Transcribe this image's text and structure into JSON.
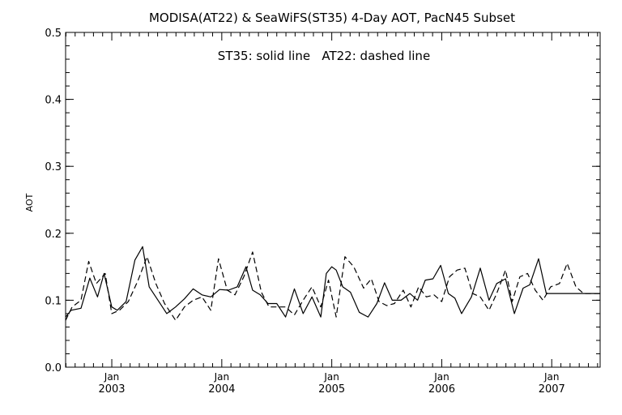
{
  "chart_data": {
    "type": "line",
    "title": "MODISA(AT22) & SeaWiFS(ST35) 4-Day AOT, PacN45 Subset",
    "annotation": "ST35: solid line   AT22: dashed line",
    "ylabel": "AOT",
    "xlabel": "",
    "xlim": [
      2002.58,
      2007.44
    ],
    "ylim": [
      0.0,
      0.5
    ],
    "yticks": [
      "0.0",
      "0.1",
      "0.2",
      "0.3",
      "0.4",
      "0.5"
    ],
    "xticks": [
      {
        "month": "Jan",
        "year": "2003",
        "x": 2003.0
      },
      {
        "month": "Jan",
        "year": "2004",
        "x": 2004.0
      },
      {
        "month": "Jan",
        "year": "2005",
        "x": 2005.0
      },
      {
        "month": "Jan",
        "year": "2006",
        "x": 2006.0
      },
      {
        "month": "Jan",
        "year": "2007",
        "x": 2007.0
      }
    ],
    "grid": false,
    "legend": "none",
    "series": [
      {
        "name": "ST35",
        "style": "solid",
        "color": "#000000",
        "x": [
          2002.58,
          2002.63,
          2002.72,
          2002.8,
          2002.87,
          2002.93,
          2003.0,
          2003.05,
          2003.13,
          2003.21,
          2003.28,
          2003.34,
          2003.42,
          2003.5,
          2003.58,
          2003.66,
          2003.74,
          2003.82,
          2003.9,
          2003.98,
          2004.06,
          2004.14,
          2004.22,
          2004.28,
          2004.35,
          2004.42,
          2004.5,
          2004.58,
          2004.66,
          2004.74,
          2004.82,
          2004.9,
          2004.95,
          2005.0,
          2005.04,
          2005.1,
          2005.17,
          2005.25,
          2005.33,
          2005.41,
          2005.48,
          2005.55,
          2005.63,
          2005.71,
          2005.78,
          2005.85,
          2005.92,
          2005.99,
          2006.06,
          2006.12,
          2006.18,
          2006.27,
          2006.35,
          2006.43,
          2006.5,
          2006.58,
          2006.66,
          2006.74,
          2006.8,
          2006.88,
          2006.95,
          2007.02,
          2007.1,
          2007.18,
          2007.25,
          2007.33,
          2007.39,
          2007.44
        ],
        "y": [
          0.075,
          0.085,
          0.088,
          0.133,
          0.105,
          0.14,
          0.09,
          0.085,
          0.098,
          0.16,
          0.18,
          0.12,
          0.1,
          0.08,
          0.09,
          0.102,
          0.117,
          0.108,
          0.105,
          0.116,
          0.115,
          0.12,
          0.15,
          0.115,
          0.108,
          0.095,
          0.095,
          0.075,
          0.117,
          0.08,
          0.105,
          0.075,
          0.14,
          0.15,
          0.145,
          0.12,
          0.112,
          0.082,
          0.075,
          0.095,
          0.126,
          0.1,
          0.1,
          0.11,
          0.1,
          0.13,
          0.132,
          0.152,
          0.11,
          0.103,
          0.08,
          0.105,
          0.148,
          0.1,
          0.125,
          0.132,
          0.08,
          0.118,
          0.123,
          0.162,
          0.11,
          0.11,
          0.11,
          0.11,
          0.11,
          0.11,
          0.11,
          0.11
        ]
      },
      {
        "name": "AT22",
        "style": "dashed",
        "color": "#000000",
        "x": [
          2002.58,
          2002.64,
          2002.72,
          2002.79,
          2002.86,
          2002.94,
          2003.0,
          2003.07,
          2003.15,
          2003.24,
          2003.32,
          2003.4,
          2003.48,
          2003.58,
          2003.66,
          2003.74,
          2003.82,
          2003.9,
          2003.97,
          2004.05,
          2004.12,
          2004.2,
          2004.28,
          2004.36,
          2004.43,
          2004.51,
          2004.58,
          2004.66,
          2004.74,
          2004.82,
          2004.9,
          2004.97,
          2005.04,
          2005.12,
          2005.2,
          2005.29,
          2005.36,
          2005.43,
          2005.5,
          2005.57,
          2005.65,
          2005.72,
          2005.79,
          2005.86,
          2005.93,
          2006.0,
          2006.07,
          2006.14,
          2006.21,
          2006.28,
          2006.35,
          2006.43,
          2006.5,
          2006.58,
          2006.64,
          2006.71,
          2006.78,
          2006.85,
          2006.92,
          2006.99,
          2007.07,
          2007.14,
          2007.22,
          2007.29,
          2007.36,
          2007.44
        ],
        "y": [
          0.07,
          0.09,
          0.1,
          0.158,
          0.125,
          0.14,
          0.08,
          0.085,
          0.098,
          0.13,
          0.165,
          0.125,
          0.095,
          0.07,
          0.09,
          0.1,
          0.105,
          0.085,
          0.162,
          0.115,
          0.108,
          0.135,
          0.172,
          0.112,
          0.09,
          0.09,
          0.09,
          0.078,
          0.1,
          0.12,
          0.09,
          0.13,
          0.075,
          0.165,
          0.15,
          0.118,
          0.132,
          0.098,
          0.092,
          0.095,
          0.115,
          0.09,
          0.12,
          0.105,
          0.108,
          0.098,
          0.135,
          0.145,
          0.148,
          0.11,
          0.105,
          0.085,
          0.11,
          0.145,
          0.098,
          0.135,
          0.14,
          0.115,
          0.1,
          0.12,
          0.125,
          0.155,
          0.12,
          0.11,
          0.11,
          0.11
        ]
      }
    ]
  }
}
